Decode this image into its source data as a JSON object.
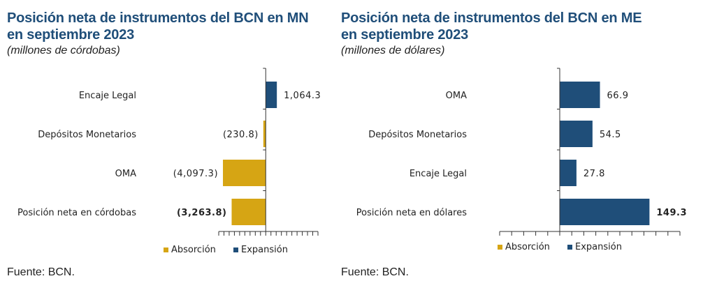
{
  "colors": {
    "absorcion": "#d6a514",
    "expansion": "#1f4e79",
    "title": "#1f4e79"
  },
  "panels": {
    "left": {
      "title_line1": "Posición neta de instrumentos del BCN en MN",
      "title_line2": "en septiembre 2023",
      "subtitle": "(millones de córdobas)",
      "source": "Fuente: BCN.",
      "legend": {
        "absorcion": "Absorción",
        "expansion": "Expansión"
      },
      "chart_data": {
        "type": "bar",
        "orientation": "horizontal",
        "categories": [
          "Encaje Legal",
          "Depósitos Monetarios",
          "OMA",
          "Posición neta en córdobas"
        ],
        "values": [
          1064.3,
          -230.8,
          -4097.3,
          -3263.8
        ],
        "labels": [
          "1,064.3",
          "(230.8)",
          "(4,097.3)",
          "(3,263.8)"
        ],
        "xlim": [
          -4500,
          5000
        ]
      }
    },
    "right": {
      "title_line1": "Posición neta de instrumentos del BCN en ME",
      "title_line2": "en septiembre 2023",
      "subtitle": "(millones de dólares)",
      "source": "Fuente: BCN.",
      "legend": {
        "absorcion": "Absorción",
        "expansion": "Expansión"
      },
      "chart_data": {
        "type": "bar",
        "orientation": "horizontal",
        "categories": [
          "OMA",
          "Depósitos Monetarios",
          "Encaje Legal",
          "Posición neta en dólares"
        ],
        "values": [
          66.9,
          54.5,
          27.8,
          149.3
        ],
        "labels": [
          "66.9",
          "54.5",
          "27.8",
          "149.3"
        ],
        "xlim": [
          -100,
          200
        ]
      }
    }
  }
}
